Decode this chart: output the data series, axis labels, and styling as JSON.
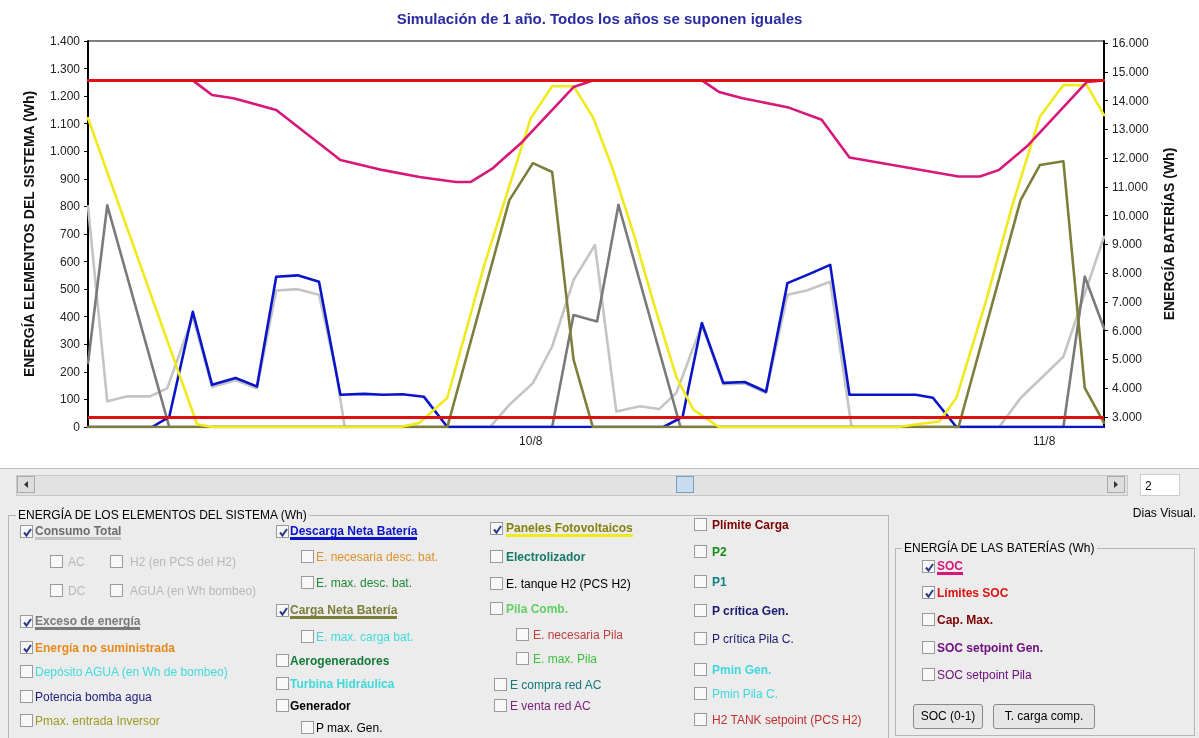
{
  "chart_data": [
    {
      "type": "line",
      "title": "Simulación de 1 año. Todos los años se suponen iguales",
      "ylabel": "ENERGÍA ELEMENTOS DEL SISTEMA (Wh)",
      "y2label": "ENERGÍA BATERÍAS (Wh)",
      "xlim": [
        "--08-09T03:18",
        "--08-11T02:48"
      ],
      "xticks": [
        {
          "value": "--08-10",
          "label": "10/8"
        },
        {
          "value": "--08-11",
          "label": "11/8"
        }
      ],
      "ylim": [
        0,
        1400
      ],
      "yticks": [
        0,
        100,
        200,
        300,
        400,
        500,
        600,
        700,
        800,
        900,
        {
          "value": 1000,
          "label": "1.000"
        },
        {
          "value": 1100,
          "label": "1.100"
        },
        {
          "value": 1200,
          "label": "1.200"
        },
        {
          "value": 1300,
          "label": "1.300"
        },
        {
          "value": 1400,
          "label": "1.400"
        }
      ],
      "y2lim": [
        2650,
        16070
      ],
      "y2ticks": [
        {
          "value": 3000,
          "label": "3.000"
        },
        {
          "value": 4000,
          "label": "4.000"
        },
        {
          "value": 5000,
          "label": "5.000"
        },
        {
          "value": 6000,
          "label": "6.000"
        },
        {
          "value": 7000,
          "label": "7.000"
        },
        {
          "value": 8000,
          "label": "8.000"
        },
        {
          "value": 9000,
          "label": "9.000"
        },
        {
          "value": 10000,
          "label": "10.000"
        },
        {
          "value": 11000,
          "label": "11.000"
        },
        {
          "value": 12000,
          "label": "12.000"
        },
        {
          "value": 13000,
          "label": "13.000"
        },
        {
          "value": 14000,
          "label": "14.000"
        },
        {
          "value": 15000,
          "label": "15.000"
        },
        {
          "value": 16000,
          "label": "16.000"
        }
      ],
      "grid": false,
      "marker": "none",
      "line_style": "solid",
      "ref_lines": [
        {
          "axis": "y2",
          "value": 14700,
          "color": "#dd1111"
        },
        {
          "axis": "y2",
          "value": 3000,
          "color": "#dd1111"
        }
      ],
      "series": [
        {
          "name": "Consumo Total",
          "color": "#c4c4c4",
          "x": [
            "--08-09T03:18",
            "--08-09T04:12",
            "--08-09T05:06",
            "--08-09T06:12",
            "--08-09T07:00",
            "--08-09T08:12",
            "--08-09T09:06",
            "--08-09T10:12",
            "--08-09T11:12",
            "--08-09T12:06",
            "--08-09T13:06",
            "--08-09T14:06",
            "--08-09T14:54",
            "--08-09T15:18",
            "--08-09T22:06",
            "--08-09T23:00",
            "--08-10T00:06",
            "--08-10T01:00",
            "--08-10T02:00",
            "--08-10T03:00",
            "--08-10T04:00",
            "--08-10T05:06",
            "--08-10T06:00",
            "--08-10T06:48",
            "--08-10T08:00",
            "--08-10T09:00",
            "--08-10T10:00",
            "--08-10T11:00",
            "--08-10T12:00",
            "--08-10T12:54",
            "--08-10T14:00",
            "--08-10T15:00",
            "--08-10T21:54",
            "--08-10T22:54",
            "--08-11T00:54",
            "--08-11T02:48"
          ],
          "values": [
            800,
            93,
            111,
            111,
            140,
            400,
            145,
            170,
            140,
            495,
            500,
            480,
            200,
            0,
            0,
            81,
            159,
            292,
            533,
            660,
            56,
            75,
            65,
            123,
            370,
            155,
            158,
            123,
            480,
            495,
            527,
            0,
            0,
            105,
            255,
            690
          ]
        },
        {
          "name": "Exceso de energía",
          "color": "#7a7a7a",
          "x": [
            "--08-09T03:18",
            "--08-09T04:12",
            "--08-09T07:06",
            "--08-10T01:00",
            "--08-10T02:00",
            "--08-10T03:06",
            "--08-10T04:06",
            "--08-10T07:00",
            "--08-11T00:54",
            "--08-11T01:54",
            "--08-11T02:48"
          ],
          "values": [
            232,
            804,
            0,
            0,
            406,
            383,
            806,
            0,
            0,
            546,
            358
          ]
        },
        {
          "name": "Descarga Neta Batería",
          "color": "#0a14c8",
          "x": [
            "--08-09T03:18",
            "--08-09T06:18",
            "--08-09T07:06",
            "--08-09T08:12",
            "--08-09T09:06",
            "--08-09T10:12",
            "--08-09T11:12",
            "--08-09T12:06",
            "--08-09T13:06",
            "--08-09T14:06",
            "--08-09T15:06",
            "--08-09T16:12",
            "--08-09T17:06",
            "--08-09T18:00",
            "--08-09T19:00",
            "--08-09T20:06",
            "--08-10T06:12",
            "--08-10T07:06",
            "--08-10T08:00",
            "--08-10T09:00",
            "--08-10T10:00",
            "--08-10T11:00",
            "--08-10T12:00",
            "--08-10T12:54",
            "--08-10T14:00",
            "--08-10T14:54",
            "--08-10T18:00",
            "--08-10T18:48",
            "--08-10T19:54",
            "--08-11T02:48"
          ],
          "values": [
            0,
            0,
            37,
            418,
            153,
            178,
            147,
            545,
            550,
            527,
            117,
            120,
            117,
            119,
            110,
            0,
            0,
            37,
            377,
            160,
            163,
            128,
            522,
            551,
            588,
            117,
            117,
            106,
            0,
            0
          ]
        },
        {
          "name": "Carga Neta Batería",
          "color": "#7d7d3c",
          "x": [
            "--08-09T03:18",
            "--08-09T20:06",
            "--08-09T23:00",
            "--08-10T00:06",
            "--08-10T01:00",
            "--08-10T02:00",
            "--08-10T02:54",
            "--08-10T20:00",
            "--08-10T22:54",
            "--08-10T23:48",
            "--08-11T00:54",
            "--08-11T01:54",
            "--08-11T02:48"
          ],
          "values": [
            0,
            0,
            823,
            957,
            925,
            244,
            0,
            0,
            823,
            950,
            964,
            142,
            15
          ]
        },
        {
          "name": "Paneles Fotovoltaicos",
          "color": "#f0ea1c",
          "x": [
            "--08-09T03:18",
            "--08-09T08:24",
            "--08-09T09:06",
            "--08-09T17:54",
            "--08-09T18:48",
            "--08-09T20:06",
            "--08-09T21:48",
            "--08-10T00:00",
            "--08-10T01:00",
            "--08-10T02:00",
            "--08-10T02:54",
            "--08-10T03:48",
            "--08-10T04:48",
            "--08-10T05:42",
            "--08-10T06:48",
            "--08-10T07:36",
            "--08-10T08:48",
            "--08-10T17:12",
            "--08-10T17:54",
            "--08-10T19:06",
            "--08-10T19:54",
            "--08-10T21:18",
            "--08-10T22:30",
            "--08-10T23:48",
            "--08-11T00:54",
            "--08-11T02:00",
            "--08-11T02:48"
          ],
          "values": [
            1120,
            10,
            0,
            0,
            15,
            106,
            580,
            1120,
            1236,
            1236,
            1125,
            943,
            703,
            461,
            183,
            63,
            0,
            0,
            8,
            20,
            106,
            461,
            800,
            1125,
            1240,
            1240,
            1131
          ]
        },
        {
          "name": "SOC",
          "axis": "y2",
          "color": "#d8177a",
          "x": [
            "--08-09T03:18",
            "--08-09T08:12",
            "--08-09T09:06",
            "--08-09T10:06",
            "--08-09T12:06",
            "--08-09T15:06",
            "--08-09T17:06",
            "--08-09T18:48",
            "--08-09T20:30",
            "--08-09T21:12",
            "--08-09T22:12",
            "--08-09T23:36",
            "--08-10T02:00",
            "--08-10T02:54",
            "--08-10T08:00",
            "--08-10T08:48",
            "--08-10T09:54",
            "--08-10T12:00",
            "--08-10T13:36",
            "--08-10T14:54",
            "--08-10T20:00",
            "--08-10T21:00",
            "--08-10T21:54",
            "--08-10T23:12",
            "--08-11T02:00",
            "--08-11T02:48"
          ],
          "values": [
            14700,
            14700,
            14190,
            14080,
            13670,
            11930,
            11580,
            11340,
            11170,
            11170,
            11630,
            12560,
            14470,
            14700,
            14700,
            14300,
            14080,
            13770,
            13330,
            12020,
            11360,
            11360,
            11590,
            12410,
            14650,
            14700
          ]
        }
      ]
    },
    {
      "type": "other",
      "annotations": [
        "ENERGÍA DE LOS ELEMENTOS DEL SISTEMA (Wh)",
        "AC",
        "H2 (en PCS del H2)",
        "DC",
        "AGUA (en Wh bombeo)",
        "Energía no suministrada",
        "Depósito AGUA (en Wh de bombeo)",
        "Potencia bomba agua",
        "Pmax. entrada Inversor",
        "E. necesaria desc. bat.",
        "E. max. desc. bat.",
        "E. max. carga bat.",
        "Aerogeneradores",
        "Turbina Hidráulica",
        "Generador",
        "P max. Gen.",
        "Electrolizador",
        "E. tanque H2 (PCS H2)",
        "Pila Comb.",
        "E. necesaria Pila",
        "E. max. Pila",
        "E compra red AC",
        "E venta red AC",
        "Plímite Carga",
        "P2",
        "P1",
        "P crítica Gen.",
        "P crítica Pila C.",
        "Pmin Gen.",
        "Pmin Pila C.",
        "H2 TANK setpoint (PCS H2)",
        "ENERGÍA DE LAS BATERÍAS (Wh)",
        "Límites SOC",
        "Cap. Max.",
        "SOC setpoint Gen.",
        "SOC setpoint Pila",
        "SOC (0-1)",
        "T. carga comp.",
        "2",
        "Dias Visual."
      ]
    }
  ]
}
